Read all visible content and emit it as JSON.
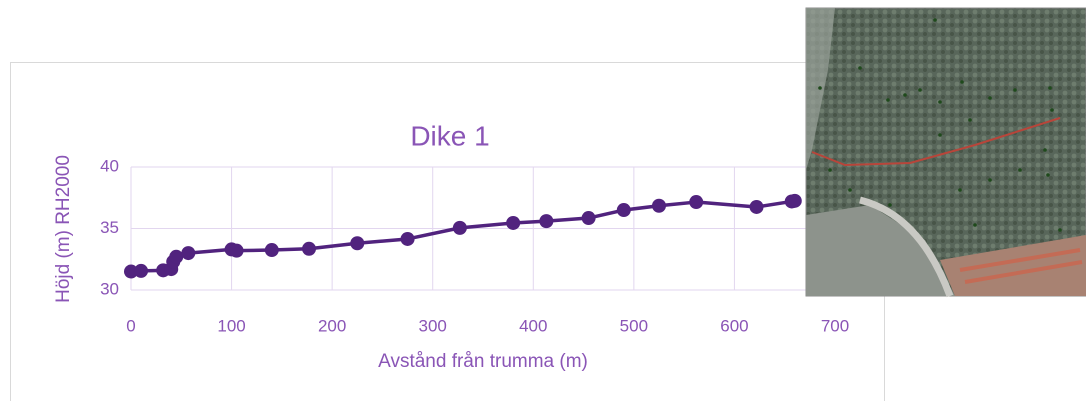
{
  "chart_data": {
    "type": "line",
    "title": "Dike 1",
    "x_label": "Avstånd från trumma (m)",
    "y_label": "Höjd (m) RH2000",
    "x": [
      0,
      10,
      32,
      40,
      42,
      45,
      57,
      100,
      105,
      140,
      177,
      225,
      275,
      327,
      380,
      413,
      455,
      490,
      525,
      562,
      622,
      657,
      660
    ],
    "series": [
      {
        "name": "Dike 1",
        "color": "#51237e",
        "values": [
          31.5,
          31.55,
          31.6,
          31.7,
          32.3,
          32.7,
          33.0,
          33.3,
          33.2,
          33.25,
          33.35,
          33.8,
          34.15,
          35.05,
          35.45,
          35.6,
          35.85,
          36.5,
          36.85,
          37.15,
          36.75,
          37.2,
          37.25
        ]
      }
    ],
    "xlim": [
      0,
      700
    ],
    "xticks": [
      0,
      100,
      200,
      300,
      400,
      500,
      600,
      700
    ],
    "ylim": [
      30,
      40
    ],
    "yticks": [
      30,
      35,
      40
    ],
    "grid": true,
    "markers": true
  }
}
